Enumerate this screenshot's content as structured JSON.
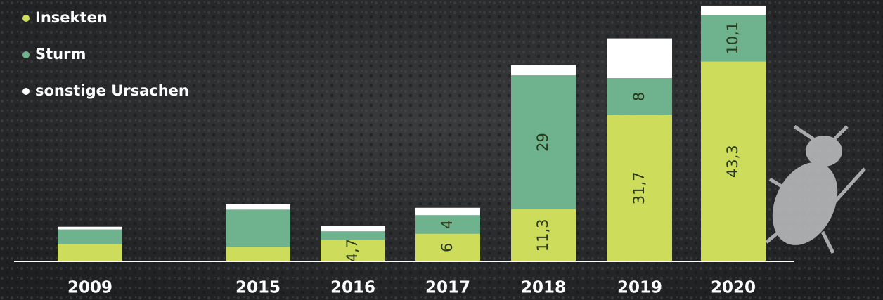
{
  "chart_data": {
    "type": "stacked-bar",
    "categories": [
      "2009",
      "2015",
      "2016",
      "2017",
      "2018",
      "2019",
      "2020"
    ],
    "series": [
      {
        "name": "Insekten",
        "color": "#cddc5a",
        "values": [
          3.8,
          3.2,
          4.7,
          6,
          11.3,
          31.7,
          43.3
        ],
        "value_labels": [
          null,
          null,
          "4,7",
          "6",
          "11,3",
          "31,7",
          "43,3"
        ]
      },
      {
        "name": "Sturm",
        "color": "#6fb38e",
        "values": [
          3.1,
          8,
          1.8,
          4,
          29,
          8,
          10.1
        ],
        "value_labels": [
          null,
          null,
          null,
          "4",
          "29",
          "8",
          "10,1"
        ]
      },
      {
        "name": "sonstige Ursachen",
        "color": "#ffffff",
        "values": [
          0.6,
          1.2,
          1.2,
          1.6,
          2.2,
          8.6,
          2
        ]
      }
    ],
    "ylim": [
      0,
      56
    ]
  }
}
